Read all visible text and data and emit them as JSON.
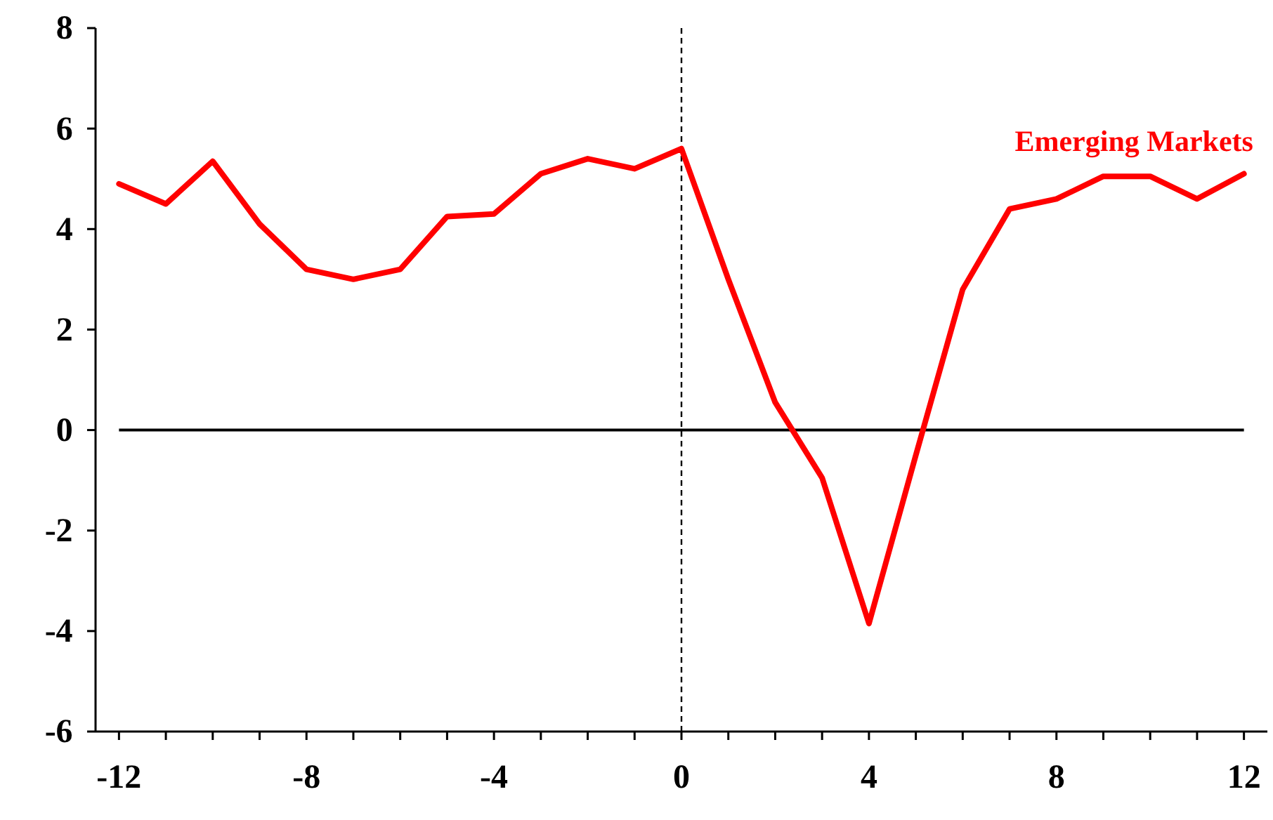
{
  "chart_data": {
    "type": "line",
    "x": [
      -12,
      -11,
      -10,
      -9,
      -8,
      -7,
      -6,
      -5,
      -4,
      -3,
      -2,
      -1,
      0,
      1,
      2,
      3,
      4,
      5,
      6,
      7,
      8,
      9,
      10,
      11,
      12
    ],
    "series": [
      {
        "name": "Emerging Markets",
        "color": "#ff0000",
        "values": [
          4.9,
          4.5,
          5.35,
          4.1,
          3.2,
          3.0,
          3.2,
          4.25,
          4.3,
          5.1,
          5.4,
          5.2,
          5.6,
          3.0,
          0.55,
          -0.95,
          -3.85,
          -0.5,
          2.8,
          4.4,
          4.6,
          5.05,
          5.05,
          4.6,
          5.1
        ]
      }
    ],
    "xlim": [
      -12.5,
      12.5
    ],
    "xticks": [
      -12,
      {
        "value": -11,
        "label": null
      },
      {
        "value": -10,
        "label": null
      },
      {
        "value": -9,
        "label": null
      },
      -8,
      {
        "value": -7,
        "label": null
      },
      {
        "value": -6,
        "label": null
      },
      {
        "value": -5,
        "label": null
      },
      -4,
      {
        "value": -3,
        "label": null
      },
      {
        "value": -2,
        "label": null
      },
      {
        "value": -1,
        "label": null
      },
      0,
      {
        "value": 1,
        "label": null
      },
      {
        "value": 2,
        "label": null
      },
      {
        "value": 3,
        "label": null
      },
      4,
      {
        "value": 5,
        "label": null
      },
      {
        "value": 6,
        "label": null
      },
      {
        "value": 7,
        "label": null
      },
      8,
      {
        "value": 9,
        "label": null
      },
      {
        "value": 10,
        "label": null
      },
      {
        "value": 11,
        "label": null
      },
      12
    ],
    "ylim": [
      -6,
      8
    ],
    "yticks": [
      -6,
      -4,
      -2,
      0,
      2,
      4,
      6,
      8
    ],
    "ref_lines": [
      {
        "axis": "y",
        "value": 0,
        "color": "#000000",
        "line_style": "solid"
      },
      {
        "axis": "x",
        "value": 0,
        "color": "#000000",
        "line_style": "dashed"
      }
    ],
    "grid": false,
    "legend": false,
    "marker": "none",
    "line_style": "solid"
  }
}
